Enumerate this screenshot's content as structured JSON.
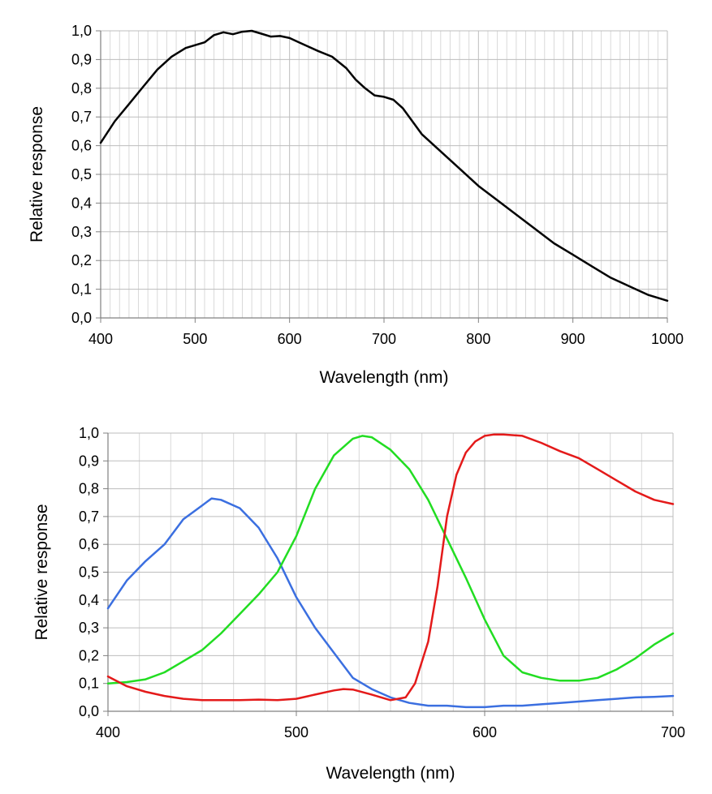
{
  "chart_data": [
    {
      "type": "line",
      "xlabel": "Wavelength (nm)",
      "ylabel": "Relative response",
      "xlim": [
        400,
        1000
      ],
      "ylim": [
        0.0,
        1.0
      ],
      "x_ticks": [
        "400",
        "500",
        "600",
        "700",
        "800",
        "900",
        "1000"
      ],
      "y_ticks": [
        "0,0",
        "0,1",
        "0,2",
        "0,3",
        "0,4",
        "0,5",
        "0,6",
        "0,7",
        "0,8",
        "0,9",
        "1,0"
      ],
      "grid": true,
      "legend": "none",
      "series": [
        {
          "color": "#000000",
          "x": [
            400,
            415,
            430,
            445,
            460,
            475,
            490,
            500,
            510,
            520,
            530,
            540,
            550,
            560,
            570,
            580,
            590,
            600,
            610,
            620,
            630,
            645,
            660,
            670,
            680,
            690,
            700,
            710,
            720,
            740,
            760,
            780,
            800,
            820,
            840,
            860,
            880,
            900,
            920,
            940,
            960,
            980,
            1000
          ],
          "y": [
            0.61,
            0.685,
            0.745,
            0.805,
            0.865,
            0.91,
            0.94,
            0.95,
            0.96,
            0.985,
            0.995,
            0.988,
            0.997,
            1.0,
            0.99,
            0.98,
            0.982,
            0.975,
            0.96,
            0.945,
            0.93,
            0.91,
            0.87,
            0.83,
            0.8,
            0.775,
            0.77,
            0.76,
            0.73,
            0.64,
            0.58,
            0.52,
            0.46,
            0.41,
            0.36,
            0.31,
            0.26,
            0.22,
            0.18,
            0.14,
            0.11,
            0.08,
            0.06
          ]
        }
      ]
    },
    {
      "type": "line",
      "xlabel": "Wavelength (nm)",
      "ylabel": "Relative response",
      "xlim": [
        400,
        700
      ],
      "ylim": [
        0.0,
        1.0
      ],
      "x_ticks": [
        "400",
        "500",
        "600",
        "700"
      ],
      "y_ticks": [
        "0,0",
        "0,1",
        "0,2",
        "0,3",
        "0,4",
        "0,5",
        "0,6",
        "0,7",
        "0,8",
        "0,9",
        "1,0"
      ],
      "grid": true,
      "legend": "none",
      "series": [
        {
          "color": "#3b6fe0",
          "x": [
            400,
            410,
            420,
            430,
            440,
            450,
            455,
            460,
            470,
            480,
            490,
            500,
            510,
            520,
            530,
            540,
            550,
            560,
            570,
            580,
            590,
            600,
            610,
            620,
            630,
            640,
            650,
            660,
            670,
            680,
            690,
            700
          ],
          "y": [
            0.37,
            0.47,
            0.54,
            0.6,
            0.69,
            0.74,
            0.765,
            0.76,
            0.73,
            0.66,
            0.55,
            0.41,
            0.3,
            0.21,
            0.12,
            0.08,
            0.05,
            0.03,
            0.02,
            0.02,
            0.015,
            0.015,
            0.02,
            0.02,
            0.025,
            0.03,
            0.035,
            0.04,
            0.045,
            0.05,
            0.052,
            0.055
          ]
        },
        {
          "color": "#22dd22",
          "x": [
            400,
            410,
            420,
            430,
            440,
            450,
            460,
            470,
            480,
            490,
            500,
            510,
            520,
            530,
            535,
            540,
            550,
            560,
            570,
            580,
            590,
            600,
            610,
            620,
            630,
            640,
            650,
            660,
            670,
            680,
            690,
            700
          ],
          "y": [
            0.1,
            0.105,
            0.115,
            0.14,
            0.18,
            0.22,
            0.28,
            0.35,
            0.42,
            0.5,
            0.63,
            0.8,
            0.92,
            0.98,
            0.99,
            0.985,
            0.94,
            0.87,
            0.76,
            0.62,
            0.48,
            0.33,
            0.2,
            0.14,
            0.12,
            0.11,
            0.11,
            0.12,
            0.15,
            0.19,
            0.24,
            0.28
          ]
        },
        {
          "color": "#e41a1a",
          "x": [
            400,
            410,
            420,
            430,
            440,
            450,
            460,
            470,
            480,
            490,
            500,
            510,
            520,
            525,
            530,
            540,
            550,
            558,
            563,
            570,
            575,
            580,
            585,
            590,
            595,
            600,
            605,
            610,
            620,
            630,
            640,
            650,
            660,
            670,
            680,
            690,
            700
          ],
          "y": [
            0.125,
            0.09,
            0.07,
            0.055,
            0.045,
            0.04,
            0.04,
            0.04,
            0.042,
            0.04,
            0.045,
            0.06,
            0.075,
            0.08,
            0.078,
            0.06,
            0.04,
            0.05,
            0.1,
            0.25,
            0.45,
            0.7,
            0.85,
            0.93,
            0.97,
            0.99,
            0.995,
            0.995,
            0.99,
            0.965,
            0.935,
            0.91,
            0.87,
            0.83,
            0.79,
            0.76,
            0.745
          ]
        }
      ]
    }
  ]
}
